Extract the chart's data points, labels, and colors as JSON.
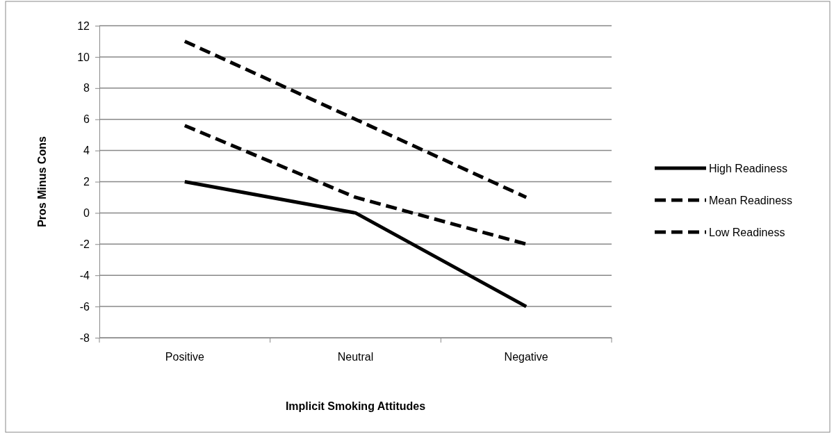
{
  "chart_data": {
    "type": "line",
    "xlabel": "Implicit Smoking Attitudes",
    "ylabel": "Pros Minus Cons",
    "categories": [
      "Positive",
      "Neutral",
      "Negative"
    ],
    "series": [
      {
        "name": "High Readiness",
        "color": "#000000",
        "line_style": "solid",
        "values": [
          2,
          0,
          -6
        ]
      },
      {
        "name": "Mean Readiness",
        "color": "#000000",
        "line_style": "dashed",
        "values": [
          5.6,
          1,
          -2
        ]
      },
      {
        "name": "Low Readiness",
        "color": "#000000",
        "line_style": "dashed",
        "values": [
          11,
          6,
          1
        ]
      }
    ],
    "ylim": [
      -8,
      12
    ],
    "yticks": [
      -8,
      -6,
      -4,
      -2,
      0,
      2,
      4,
      6,
      8,
      10,
      12
    ],
    "grid": "y",
    "legend": "right",
    "marker": "none"
  }
}
